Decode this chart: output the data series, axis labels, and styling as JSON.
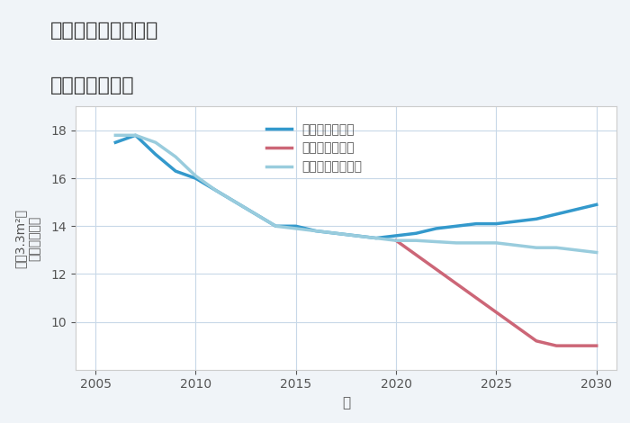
{
  "title_line1": "三重県津市木造町の",
  "title_line2": "土地の価格推移",
  "xlabel": "年",
  "ylabel": "単価（万円）",
  "ylabel2": "坪（3.3m²）",
  "ylim": [
    8,
    19
  ],
  "xlim": [
    2004,
    2031
  ],
  "yticks": [
    10,
    12,
    14,
    16,
    18
  ],
  "xticks": [
    2005,
    2010,
    2015,
    2020,
    2025,
    2030
  ],
  "background_color": "#f0f4f8",
  "plot_bg_color": "#ffffff",
  "grid_color": "#c8d8e8",
  "good_scenario": {
    "label": "グッドシナリオ",
    "color": "#3399cc",
    "linewidth": 2.5,
    "x": [
      2006,
      2007,
      2008,
      2009,
      2010,
      2011,
      2012,
      2013,
      2014,
      2015,
      2016,
      2017,
      2018,
      2019,
      2020,
      2021,
      2022,
      2023,
      2024,
      2025,
      2026,
      2027,
      2028,
      2029,
      2030
    ],
    "y": [
      17.5,
      17.8,
      17.0,
      16.3,
      16.0,
      15.5,
      15.0,
      14.5,
      14.0,
      14.0,
      13.8,
      13.7,
      13.6,
      13.5,
      13.6,
      13.7,
      13.9,
      14.0,
      14.1,
      14.1,
      14.2,
      14.3,
      14.5,
      14.7,
      14.9
    ]
  },
  "bad_scenario": {
    "label": "バッドシナリオ",
    "color": "#cc6677",
    "linewidth": 2.5,
    "x": [
      2020,
      2021,
      2022,
      2023,
      2024,
      2025,
      2026,
      2027,
      2028,
      2029,
      2030
    ],
    "y": [
      13.4,
      12.8,
      12.2,
      11.6,
      11.0,
      10.4,
      9.8,
      9.2,
      9.0,
      9.0,
      9.0
    ]
  },
  "normal_scenario": {
    "label": "ノーマルシナリオ",
    "color": "#99ccdd",
    "linewidth": 2.5,
    "x": [
      2006,
      2007,
      2008,
      2009,
      2010,
      2011,
      2012,
      2013,
      2014,
      2015,
      2016,
      2017,
      2018,
      2019,
      2020,
      2021,
      2022,
      2023,
      2024,
      2025,
      2026,
      2027,
      2028,
      2029,
      2030
    ],
    "y": [
      17.8,
      17.8,
      17.5,
      16.9,
      16.1,
      15.5,
      15.0,
      14.5,
      14.0,
      13.9,
      13.8,
      13.7,
      13.6,
      13.5,
      13.4,
      13.4,
      13.35,
      13.3,
      13.3,
      13.3,
      13.2,
      13.1,
      13.1,
      13.0,
      12.9
    ]
  }
}
